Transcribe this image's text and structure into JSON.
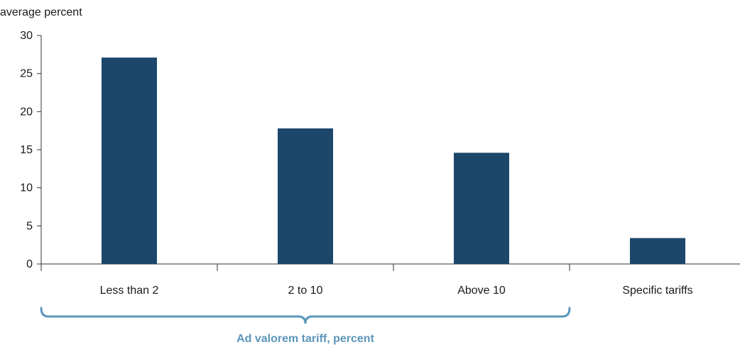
{
  "chart_data": {
    "type": "bar",
    "title": "",
    "ylabel": "average percent",
    "xlabel": "",
    "ylim": [
      0,
      30
    ],
    "yticks": [
      0,
      5,
      10,
      15,
      20,
      25,
      30
    ],
    "categories": [
      "Less than 2",
      "2 to 10",
      "Above 10",
      "Specific tariffs"
    ],
    "values": [
      27.1,
      17.8,
      14.6,
      3.4
    ],
    "group_label": {
      "text": "Ad valorem tariff, percent",
      "spans_categories": [
        "Less than 2",
        "2 to 10",
        "Above 10"
      ]
    },
    "colors": {
      "bar": "#1c476b",
      "axis": "#333333",
      "group": "#5b96bb"
    },
    "grid": false
  }
}
